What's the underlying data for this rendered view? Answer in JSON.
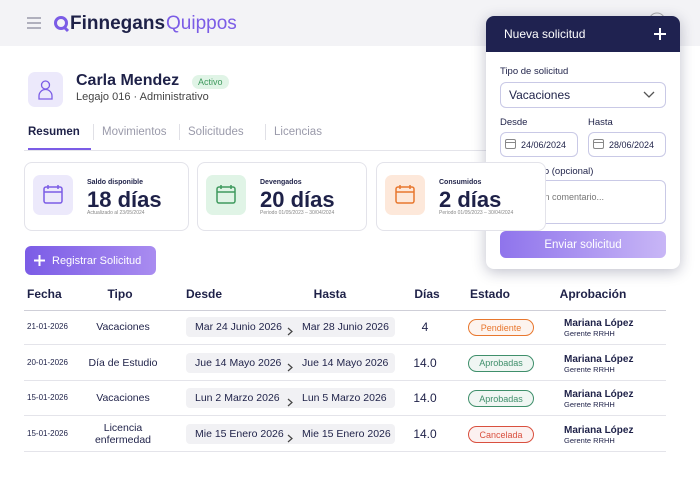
{
  "header": {
    "brand": "Finnegans",
    "product": "Quippos"
  },
  "profile": {
    "name": "Carla Mendez",
    "status": "Activo",
    "subtitle": "Legajo 016 · Administrativo"
  },
  "tabs": [
    "Resumen",
    "Movimientos",
    "Solicitudes",
    "Licencias"
  ],
  "cards": [
    {
      "label": "Saldo disponible",
      "value": "18 días",
      "note": "Actualizado al 23/05/2024"
    },
    {
      "label": "Devengados",
      "value": "20 días",
      "note": "Periodo 01/05/2023 – 30/04/2024"
    },
    {
      "label": "Consumidos",
      "value": "2 días",
      "note": "Periodo 01/05/2023 – 30/04/2024"
    }
  ],
  "actions": {
    "register": "Registrar Solicitud"
  },
  "table": {
    "headers": [
      "Fecha",
      "Tipo",
      "Desde",
      "Hasta",
      "Días",
      "Estado",
      "Aprobación"
    ],
    "rows": [
      {
        "fecha": "21-01-2026",
        "tipo": "Vacaciones",
        "desde": "Mar 24 Junio 2026",
        "hasta": "Mar 28 Junio 2026",
        "dias": "4",
        "estado": "Pendiente",
        "color": "#e8772e",
        "aprobador": "Mariana López",
        "cargo": "Gerente RRHH"
      },
      {
        "fecha": "20-01-2026",
        "tipo": "Día de Estudio",
        "desde": "Jue 14 Mayo 2026",
        "hasta": "Jue 14 Mayo 2026",
        "dias": "14.0",
        "estado": "Aprobadas",
        "color": "#3f8f6b",
        "aprobador": "Mariana López",
        "cargo": "Gerente RRHH"
      },
      {
        "fecha": "15-01-2026",
        "tipo": "Vacaciones",
        "desde": "Lun 2 Marzo 2026",
        "hasta": "Lun 5 Marzo 2026",
        "dias": "14.0",
        "estado": "Aprobadas",
        "color": "#3f8f6b",
        "aprobador": "Mariana López",
        "cargo": "Gerente RRHH"
      },
      {
        "fecha": "15-01-2026",
        "tipo": "Licencia enfermedad",
        "desde": "Mie 15 Enero 2026",
        "hasta": "Mie 15 Enero 2026",
        "dias": "14.0",
        "estado": "Cancelada",
        "color": "#d9503f",
        "aprobador": "Mariana López",
        "cargo": "Gerente RRHH"
      }
    ]
  },
  "panel": {
    "title": "Nueva solicitud",
    "type_label": "Tipo de solicitud",
    "type_value": "Vacaciones",
    "from_label": "Desde",
    "from_value": "24/06/2024",
    "to_label": "Hasta",
    "to_value": "28/06/2024",
    "comment_label": "Comentario (opcional)",
    "comment_placeholder": "Agregá un comentario...",
    "submit": "Enviar solicitud"
  }
}
